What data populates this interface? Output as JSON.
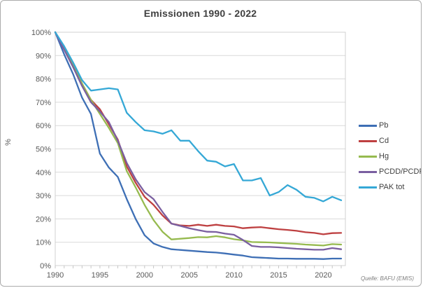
{
  "figure": {
    "title": "Emissionen 1990 - 2022",
    "source": "Quelle: BAFU (EMIS)"
  },
  "chart_data": {
    "type": "line",
    "title": "Emissionen 1990 - 2022",
    "xlabel": "",
    "ylabel": "%",
    "ylim": [
      0,
      100
    ],
    "ytick_step": 10,
    "ytick_suffix": "%",
    "grid": "horizontal",
    "legend_position": "right",
    "source": "Quelle: BAFU (EMIS)",
    "xticks": [
      1990,
      1995,
      2000,
      2005,
      2010,
      2015,
      2020
    ],
    "x": [
      1990,
      1991,
      1992,
      1993,
      1994,
      1995,
      1996,
      1997,
      1998,
      1999,
      2000,
      2001,
      2002,
      2003,
      2004,
      2005,
      2006,
      2007,
      2008,
      2009,
      2010,
      2011,
      2012,
      2013,
      2014,
      2015,
      2016,
      2017,
      2018,
      2019,
      2020,
      2021,
      2022
    ],
    "series": [
      {
        "name": "Pb",
        "color": "#3e6fb5",
        "values": [
          100,
          90.5,
          82,
          72,
          65,
          48,
          42,
          38,
          28.5,
          20,
          13,
          9.5,
          8,
          7,
          6.7,
          6.4,
          6.1,
          5.8,
          5.6,
          5.2,
          4.7,
          4.3,
          3.6,
          3.4,
          3.2,
          3.0,
          3.0,
          2.9,
          2.9,
          2.9,
          2.8,
          3.0,
          3.0
        ]
      },
      {
        "name": "Cd",
        "color": "#be4041",
        "values": [
          100,
          93,
          86,
          78,
          71,
          67,
          60.5,
          54,
          42.5,
          35.5,
          29.5,
          26,
          21.5,
          18,
          17.2,
          17.0,
          17.5,
          17.0,
          17.5,
          17.0,
          16.8,
          16.0,
          16.3,
          16.5,
          16.0,
          15.6,
          15.3,
          14.9,
          14.3,
          14.0,
          13.4,
          13.9,
          14.0
        ]
      },
      {
        "name": "Hg",
        "color": "#96ba4f",
        "values": [
          100,
          93,
          85.5,
          78,
          71,
          65,
          59,
          52.5,
          40.5,
          33.5,
          26,
          19.5,
          14.5,
          11.2,
          11.5,
          11.8,
          12.2,
          12.1,
          12.6,
          12.1,
          11.3,
          10.8,
          10.1,
          10.0,
          9.9,
          9.7,
          9.5,
          9.3,
          9.0,
          8.8,
          8.6,
          9.2,
          9.0
        ]
      },
      {
        "name": "PCDD/PCDF",
        "color": "#7a5fa0",
        "values": [
          100,
          92.5,
          85,
          77,
          70,
          66,
          61.5,
          53.5,
          44,
          37,
          31.5,
          28.5,
          23,
          18,
          17,
          16,
          15.2,
          14.5,
          14.4,
          13.7,
          13.2,
          11,
          8.4,
          8.0,
          8.0,
          7.8,
          7.5,
          7.2,
          7.0,
          6.8,
          6.8,
          7.5,
          7.0
        ]
      },
      {
        "name": "PAK tot",
        "color": "#35a8d6",
        "values": [
          100,
          94,
          87,
          79.5,
          75,
          75.5,
          76,
          75.5,
          65.5,
          61.5,
          58,
          57.5,
          56.5,
          58,
          53.5,
          53.5,
          49,
          45,
          44.5,
          42.5,
          43.5,
          36.5,
          36.5,
          37.5,
          30,
          31.5,
          34.5,
          32.5,
          29.5,
          29,
          27.5,
          29.5,
          28
        ]
      }
    ]
  }
}
